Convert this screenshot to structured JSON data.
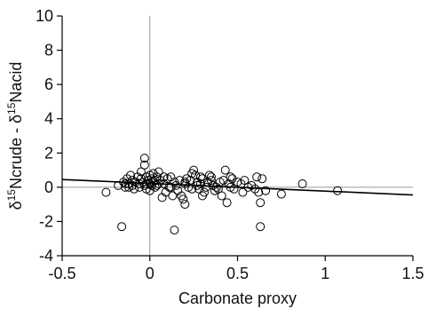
{
  "chart_data": {
    "type": "scatter",
    "title": "",
    "xlabel": "Carbonate proxy",
    "ylabel": {
      "parts": [
        {
          "text": "δ",
          "sup": false
        },
        {
          "text": "15",
          "sup": true
        },
        {
          "text": "Ncrude - δ",
          "sup": false
        },
        {
          "text": "15",
          "sup": true
        },
        {
          "text": "Nacid",
          "sup": false
        }
      ]
    },
    "xlim": [
      -0.5,
      1.5
    ],
    "ylim": [
      -4,
      10
    ],
    "xticks": [
      "-0.5",
      "0",
      "0.5",
      "1",
      "1.5"
    ],
    "yticks": [
      "-4",
      "-2",
      "0",
      "2",
      "4",
      "6",
      "8",
      "10"
    ],
    "reference_lines": {
      "x": 0,
      "y": 0
    },
    "trend_line": {
      "x": [
        -0.5,
        1.5
      ],
      "y": [
        0.45,
        -0.45
      ]
    },
    "grid": false,
    "marker": "open-circle",
    "colors": {
      "points": "#000000",
      "reference": "#999999",
      "axes": "#000000"
    },
    "series": [
      {
        "points": [
          [
            -0.25,
            -0.3
          ],
          [
            -0.18,
            0.1
          ],
          [
            -0.16,
            -2.3
          ],
          [
            -0.15,
            0.3
          ],
          [
            -0.14,
            0.0
          ],
          [
            -0.13,
            0.5
          ],
          [
            -0.12,
            0.2
          ],
          [
            -0.11,
            0.7
          ],
          [
            -0.1,
            0.1
          ],
          [
            -0.1,
            0.4
          ],
          [
            -0.09,
            -0.1
          ],
          [
            -0.08,
            0.3
          ],
          [
            -0.07,
            0.6
          ],
          [
            -0.06,
            0.2
          ],
          [
            -0.06,
            0.0
          ],
          [
            -0.05,
            0.5
          ],
          [
            -0.05,
            0.9
          ],
          [
            -0.04,
            0.3
          ],
          [
            -0.03,
            1.3
          ],
          [
            -0.03,
            0.1
          ],
          [
            -0.02,
            0.6
          ],
          [
            -0.02,
            -0.1
          ],
          [
            -0.01,
            0.4
          ],
          [
            0.0,
            0.2
          ],
          [
            0.0,
            0.7
          ],
          [
            0.0,
            -0.2
          ],
          [
            0.01,
            0.5
          ],
          [
            0.01,
            0.1
          ],
          [
            0.02,
            0.3
          ],
          [
            0.02,
            0.8
          ],
          [
            0.03,
            0.4
          ],
          [
            0.03,
            0.0
          ],
          [
            0.04,
            0.6
          ],
          [
            0.05,
            0.2
          ],
          [
            0.05,
            0.9
          ],
          [
            0.06,
            0.4
          ],
          [
            0.07,
            -0.6
          ],
          [
            0.08,
            0.2
          ],
          [
            0.09,
            -0.3
          ],
          [
            0.1,
            0.5
          ],
          [
            0.11,
            0.0
          ],
          [
            0.12,
            0.6
          ],
          [
            0.13,
            -0.5
          ],
          [
            0.14,
            0.3
          ],
          [
            0.14,
            -2.5
          ],
          [
            0.15,
            0.1
          ],
          [
            0.16,
            -0.2
          ],
          [
            0.17,
            0.4
          ],
          [
            0.18,
            -0.5
          ],
          [
            0.19,
            -0.7
          ],
          [
            0.2,
            0.2
          ],
          [
            0.2,
            -1.0
          ],
          [
            0.21,
            0.5
          ],
          [
            0.22,
            0.0
          ],
          [
            0.23,
            0.4
          ],
          [
            0.24,
            0.8
          ],
          [
            0.25,
            1.0
          ],
          [
            0.26,
            0.7
          ],
          [
            0.27,
            0.3
          ],
          [
            0.28,
            -0.1
          ],
          [
            0.29,
            0.2
          ],
          [
            0.3,
            0.5
          ],
          [
            0.31,
            -0.3
          ],
          [
            0.32,
            0.0
          ],
          [
            0.33,
            0.3
          ],
          [
            0.34,
            0.7
          ],
          [
            0.35,
            0.6
          ],
          [
            0.36,
            0.1
          ],
          [
            0.37,
            -0.2
          ],
          [
            0.38,
            0.0
          ],
          [
            0.4,
            0.3
          ],
          [
            0.41,
            -0.5
          ],
          [
            0.42,
            0.4
          ],
          [
            0.43,
            1.0
          ],
          [
            0.44,
            -0.9
          ],
          [
            0.45,
            0.2
          ],
          [
            0.46,
            0.6
          ],
          [
            0.47,
            0.5
          ],
          [
            0.48,
            -0.1
          ],
          [
            0.5,
            0.3
          ],
          [
            0.52,
            0.2
          ],
          [
            0.54,
            0.4
          ],
          [
            0.56,
            0.0
          ],
          [
            0.58,
            0.1
          ],
          [
            0.6,
            -0.1
          ],
          [
            0.61,
            0.6
          ],
          [
            0.62,
            -0.3
          ],
          [
            0.63,
            -2.3
          ],
          [
            0.63,
            -0.9
          ],
          [
            0.64,
            0.5
          ],
          [
            0.66,
            -0.2
          ],
          [
            0.75,
            -0.4
          ],
          [
            0.87,
            0.2
          ],
          [
            1.07,
            -0.2
          ],
          [
            -0.03,
            1.7
          ],
          [
            -0.12,
            0.0
          ],
          [
            -0.14,
            0.2
          ],
          [
            0.04,
            0.1
          ],
          [
            0.08,
            0.6
          ],
          [
            0.27,
            0.1
          ],
          [
            0.29,
            0.6
          ],
          [
            0.3,
            -0.5
          ],
          [
            0.35,
            0.4
          ],
          [
            0.39,
            -0.1
          ],
          [
            0.53,
            -0.3
          ],
          [
            -0.02,
            0.2
          ],
          [
            0.12,
            0.0
          ],
          [
            0.2,
            0.3
          ],
          [
            0.24,
            -0.1
          ],
          [
            0.46,
            0.0
          ]
        ]
      }
    ]
  }
}
